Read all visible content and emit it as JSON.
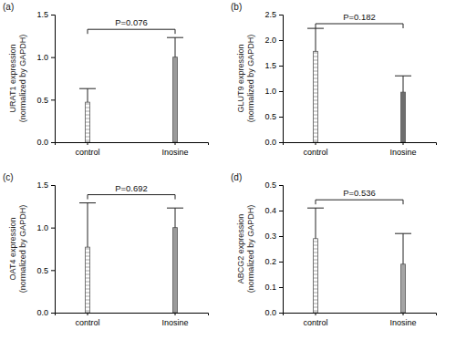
{
  "chart_data": [
    {
      "type": "bar",
      "title": "(a)",
      "ylabel": [
        "URAT1 expression",
        "(normalized by GAPDH)"
      ],
      "categories": [
        "control",
        "Inosine"
      ],
      "values": [
        0.47,
        1.0
      ],
      "errors": [
        0.16,
        0.23
      ],
      "colors": [
        "#c8c8c8",
        "#9a9a9a"
      ],
      "annotation": "P=0.076",
      "ylim": [
        0,
        1.5
      ],
      "yticks": [
        {
          "value": 0,
          "label": "0.0"
        },
        {
          "value": 0.5,
          "label": "0.5"
        },
        {
          "value": 1,
          "label": "1.0"
        },
        {
          "value": 1.5,
          "label": "1.5"
        }
      ]
    },
    {
      "type": "bar",
      "title": "(b)",
      "ylabel": [
        "GLUT9 expression",
        "(normalized by GAPDH)"
      ],
      "categories": [
        "control",
        "Inosine"
      ],
      "values": [
        1.78,
        0.98
      ],
      "errors": [
        0.45,
        0.32
      ],
      "colors": [
        "#c8c8c8",
        "#6e6e6e"
      ],
      "annotation": "P=0.182",
      "ylim": [
        0,
        2.5
      ],
      "yticks": [
        {
          "value": 0,
          "label": "0.0"
        },
        {
          "value": 0.5,
          "label": "0.5"
        },
        {
          "value": 1,
          "label": "1.0"
        },
        {
          "value": 1.5,
          "label": "1.5"
        },
        {
          "value": 2,
          "label": "2.0"
        },
        {
          "value": 2.5,
          "label": "2.5"
        }
      ]
    },
    {
      "type": "bar",
      "title": "(c)",
      "ylabel": [
        "OAT4 expression",
        "(normalized by GAPDH)"
      ],
      "categories": [
        "control",
        "Inosine"
      ],
      "values": [
        0.77,
        1.0
      ],
      "errors": [
        0.52,
        0.23
      ],
      "colors": [
        "#c8c8c8",
        "#9a9a9a"
      ],
      "annotation": "P=0.692",
      "ylim": [
        0,
        1.5
      ],
      "yticks": [
        {
          "value": 0,
          "label": "0.0"
        },
        {
          "value": 0.5,
          "label": "0.5"
        },
        {
          "value": 1,
          "label": "1.0"
        },
        {
          "value": 1.5,
          "label": "1.5"
        }
      ]
    },
    {
      "type": "bar",
      "title": "(d)",
      "ylabel": [
        "ABCG2 expression",
        "(normalized by GAPDH)"
      ],
      "categories": [
        "control",
        "Inosine"
      ],
      "values": [
        0.29,
        0.19
      ],
      "errors": [
        0.12,
        0.12
      ],
      "colors": [
        "#c8c8c8",
        "#a5a5a5"
      ],
      "annotation": "P=0.536",
      "ylim": [
        0,
        0.5
      ],
      "yticks": [
        {
          "value": 0,
          "label": "0.0"
        },
        {
          "value": 0.1,
          "label": "0.1"
        },
        {
          "value": 0.2,
          "label": "0.2"
        },
        {
          "value": 0.3,
          "label": "0.3"
        },
        {
          "value": 0.4,
          "label": "0.4"
        },
        {
          "value": 0.5,
          "label": "0.5"
        }
      ]
    }
  ]
}
